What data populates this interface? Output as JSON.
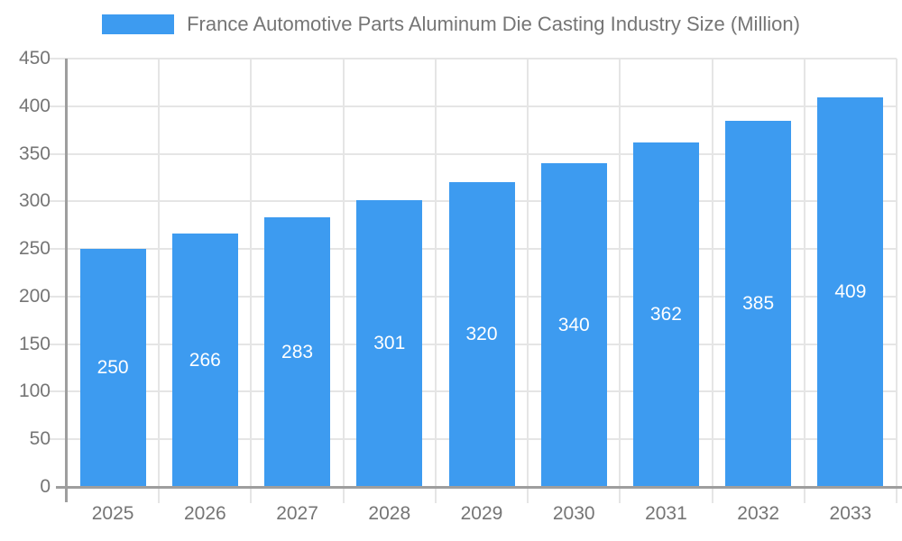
{
  "legend": {
    "title": "France Automotive Parts Aluminum Die Casting Industry Size (Million)",
    "swatch_color": "#3d9bf0"
  },
  "chart_data": {
    "type": "bar",
    "title": "France Automotive Parts Aluminum Die Casting Industry Size (Million)",
    "categories": [
      "2025",
      "2026",
      "2027",
      "2028",
      "2029",
      "2030",
      "2031",
      "2032",
      "2033"
    ],
    "values": [
      250,
      266,
      283,
      301,
      320,
      340,
      362,
      385,
      409
    ],
    "xlabel": "",
    "ylabel": "",
    "ylim": [
      0,
      450
    ],
    "yticks": [
      0,
      50,
      100,
      150,
      200,
      250,
      300,
      350,
      400,
      450
    ],
    "grid": true,
    "legend_position": "top",
    "value_label_position": "inside-center",
    "bar_color": "#3d9bf0",
    "bar_label_color": "#ffffff"
  },
  "colors": {
    "axis": "#9e9e9e",
    "grid": "#e5e5e5",
    "tick_label": "#757575",
    "background": "#ffffff"
  }
}
